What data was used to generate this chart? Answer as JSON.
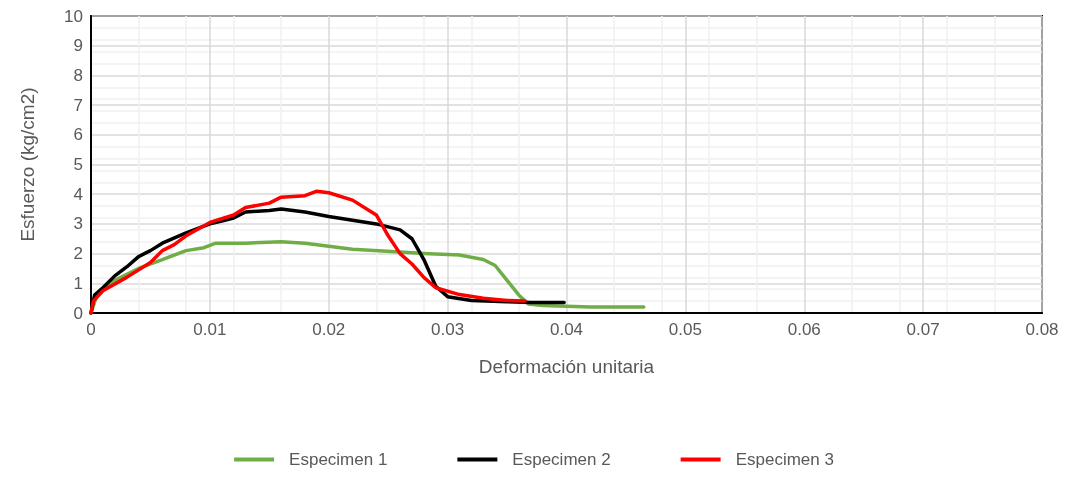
{
  "chart_data": {
    "type": "line",
    "xlabel": "Deformación unitaria",
    "ylabel": "Esfuerzo (kg/cm2)",
    "xlim": [
      0,
      0.08
    ],
    "xticks": [
      0,
      0.01,
      0.02,
      0.03,
      0.04,
      0.05,
      0.06,
      0.07,
      0.08
    ],
    "ylim": [
      0,
      10
    ],
    "yticks": [
      0,
      1,
      2,
      3,
      4,
      5,
      6,
      7,
      8,
      9,
      10
    ],
    "grid": true,
    "legend": "bottom",
    "marker": "none",
    "line_style": "solid",
    "series": [
      {
        "name": "Especimen 1",
        "color": "#70ad47",
        "x": [
          0,
          0.0005,
          0.002,
          0.004,
          0.006,
          0.008,
          0.0095,
          0.0105,
          0.013,
          0.016,
          0.018,
          0.022,
          0.026,
          0.028,
          0.031,
          0.033,
          0.034,
          0.035,
          0.036,
          0.0368,
          0.038,
          0.042,
          0.0465
        ],
        "values": [
          0,
          0.6,
          1.1,
          1.5,
          1.8,
          2.1,
          2.2,
          2.35,
          2.35,
          2.4,
          2.35,
          2.15,
          2.05,
          2.0,
          1.95,
          1.8,
          1.6,
          1.1,
          0.6,
          0.3,
          0.25,
          0.2,
          0.2
        ]
      },
      {
        "name": "Especimen 2",
        "color": "#000000",
        "x": [
          0,
          0.0003,
          0.001,
          0.002,
          0.003,
          0.004,
          0.005,
          0.006,
          0.008,
          0.01,
          0.011,
          0.012,
          0.013,
          0.015,
          0.016,
          0.018,
          0.02,
          0.024,
          0.026,
          0.027,
          0.028,
          0.029,
          0.03,
          0.032,
          0.035,
          0.037,
          0.0398
        ],
        "values": [
          0,
          0.6,
          0.85,
          1.25,
          1.55,
          1.9,
          2.1,
          2.35,
          2.7,
          3.0,
          3.1,
          3.2,
          3.4,
          3.45,
          3.5,
          3.4,
          3.25,
          3.0,
          2.8,
          2.5,
          1.8,
          0.9,
          0.55,
          0.42,
          0.38,
          0.35,
          0.35
        ]
      },
      {
        "name": "Especimen 3",
        "color": "#ff0000",
        "x": [
          0,
          0.0002,
          0.001,
          0.003,
          0.005,
          0.006,
          0.007,
          0.008,
          0.01,
          0.012,
          0.013,
          0.015,
          0.016,
          0.018,
          0.019,
          0.02,
          0.022,
          0.024,
          0.025,
          0.026,
          0.027,
          0.028,
          0.029,
          0.031,
          0.033,
          0.035,
          0.0365
        ],
        "values": [
          0,
          0.4,
          0.75,
          1.2,
          1.7,
          2.1,
          2.3,
          2.6,
          3.05,
          3.3,
          3.55,
          3.7,
          3.9,
          3.95,
          4.1,
          4.05,
          3.8,
          3.3,
          2.6,
          2.0,
          1.65,
          1.2,
          0.85,
          0.62,
          0.5,
          0.42,
          0.4
        ]
      }
    ]
  }
}
